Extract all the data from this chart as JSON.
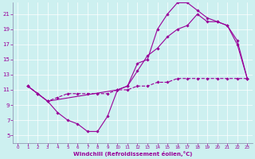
{
  "xlabel": "Windchill (Refroidissement éolien,°C)",
  "xlim": [
    -0.5,
    23.5
  ],
  "ylim": [
    4,
    22.5
  ],
  "xticks": [
    0,
    1,
    2,
    3,
    4,
    5,
    6,
    7,
    8,
    9,
    10,
    11,
    12,
    13,
    14,
    15,
    16,
    17,
    18,
    19,
    20,
    21,
    22,
    23
  ],
  "yticks": [
    5,
    7,
    9,
    11,
    13,
    15,
    17,
    19,
    21
  ],
  "bg_color": "#cdf0f0",
  "line_color": "#990099",
  "line1_x": [
    1,
    2,
    3,
    4,
    5,
    6,
    7,
    8,
    9,
    10,
    11,
    12,
    13,
    14,
    15,
    16,
    17,
    18,
    19,
    20,
    21,
    22,
    23
  ],
  "line1_y": [
    11.5,
    10.5,
    9.5,
    8.0,
    7.0,
    6.5,
    5.5,
    5.5,
    7.5,
    11.0,
    11.5,
    14.5,
    15.0,
    19.0,
    21.0,
    22.5,
    22.5,
    21.5,
    20.5,
    20.0,
    19.5,
    17.0,
    12.5
  ],
  "line2_x": [
    1,
    2,
    3,
    4,
    5,
    6,
    7,
    8,
    9,
    10,
    11,
    12,
    13,
    14,
    15,
    16,
    17,
    18,
    19,
    20,
    21,
    22,
    23
  ],
  "line2_y": [
    11.5,
    10.5,
    9.5,
    10.0,
    10.5,
    10.5,
    10.5,
    10.5,
    10.5,
    11.0,
    11.0,
    11.5,
    11.5,
    12.0,
    12.0,
    12.5,
    12.5,
    12.5,
    12.5,
    12.5,
    12.5,
    12.5,
    12.5
  ],
  "line3_x": [
    1,
    2,
    3,
    10,
    11,
    12,
    13,
    14,
    15,
    16,
    17,
    18,
    19,
    20,
    21,
    22,
    23
  ],
  "line3_y": [
    11.5,
    10.5,
    9.5,
    11.0,
    11.5,
    13.5,
    15.5,
    16.5,
    18.0,
    19.0,
    19.5,
    21.0,
    20.0,
    20.0,
    19.5,
    17.5,
    12.5
  ]
}
